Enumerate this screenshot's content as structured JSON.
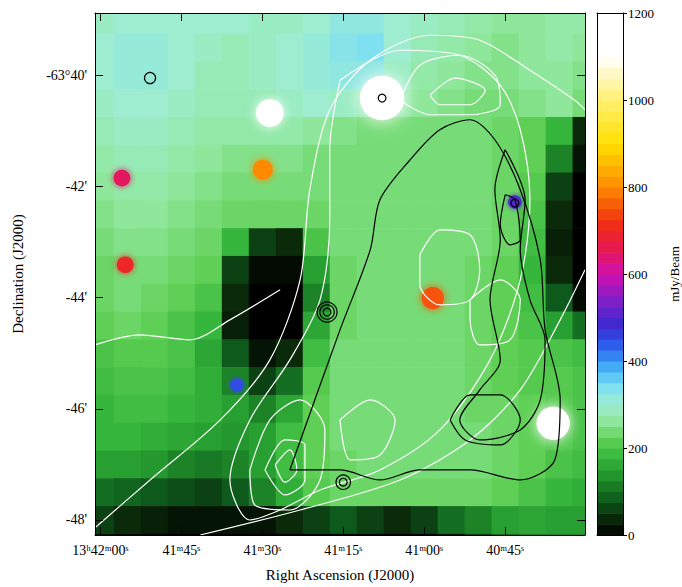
{
  "chart_data": {
    "type": "heatmap",
    "x_label": "Right Ascension (J2000)",
    "y_label": "Declination (J2000)",
    "xlim": [
      121,
      30.2
    ],
    "xticks": [
      {
        "value": 120,
        "label": "13ʰ42ᵐ00ˢ"
      },
      {
        "value": 105,
        "label": "41ᵐ45ˢ"
      },
      {
        "value": 90,
        "label": "41ᵐ30ˢ"
      },
      {
        "value": 75,
        "label": "41ᵐ15ˢ"
      },
      {
        "value": 60,
        "label": "41ᵐ00ˢ"
      },
      {
        "value": 45,
        "label": "40ᵐ45ˢ"
      }
    ],
    "ylim": [
      -48.27,
      -38.88
    ],
    "yticks": [
      {
        "value": -40,
        "label": "-63°40'"
      },
      {
        "value": -42,
        "label": "-42'"
      },
      {
        "value": -44,
        "label": "-44'"
      },
      {
        "value": -46,
        "label": "-46'"
      },
      {
        "value": -48,
        "label": "-48'"
      }
    ],
    "heatmap": {
      "x": [
        120,
        115,
        110,
        105,
        100,
        95,
        90,
        85,
        80,
        75,
        70,
        65,
        60,
        55,
        50,
        45,
        40,
        35,
        30
      ],
      "y": [
        -39,
        -39.5,
        -40,
        -40.5,
        -41,
        -41.5,
        -42,
        -42.5,
        -43,
        -43.5,
        -44,
        -44.5,
        -45,
        -45.5,
        -46,
        -46.5,
        -47,
        -47.5,
        -48,
        -48.5
      ],
      "values": [
        [
          290,
          300,
          300,
          300,
          300,
          300,
          290,
          290,
          300,
          320,
          320,
          300,
          290,
          280,
          270,
          260,
          260,
          270,
          270
        ],
        [
          300,
          310,
          310,
          300,
          290,
          280,
          290,
          300,
          310,
          330,
          340,
          300,
          280,
          270,
          260,
          250,
          260,
          270,
          260
        ],
        [
          300,
          310,
          310,
          300,
          280,
          280,
          290,
          300,
          310,
          320,
          320,
          290,
          270,
          260,
          250,
          250,
          260,
          260,
          250
        ],
        [
          290,
          300,
          300,
          290,
          280,
          280,
          280,
          290,
          300,
          290,
          280,
          270,
          260,
          250,
          240,
          240,
          250,
          260,
          240
        ],
        [
          280,
          290,
          290,
          280,
          270,
          270,
          270,
          270,
          260,
          250,
          240,
          240,
          240,
          240,
          240,
          230,
          220,
          180,
          40
        ],
        [
          270,
          280,
          280,
          270,
          260,
          250,
          250,
          250,
          240,
          240,
          240,
          240,
          240,
          240,
          240,
          230,
          220,
          120,
          20
        ],
        [
          260,
          270,
          270,
          260,
          250,
          240,
          240,
          240,
          240,
          240,
          240,
          240,
          240,
          240,
          240,
          230,
          210,
          60,
          0
        ],
        [
          250,
          260,
          260,
          250,
          240,
          230,
          230,
          230,
          230,
          240,
          240,
          240,
          240,
          240,
          240,
          230,
          200,
          40,
          0
        ],
        [
          240,
          250,
          250,
          240,
          230,
          180,
          60,
          40,
          200,
          240,
          240,
          240,
          240,
          240,
          240,
          230,
          190,
          30,
          0
        ],
        [
          230,
          240,
          240,
          230,
          220,
          60,
          10,
          10,
          150,
          230,
          240,
          240,
          240,
          240,
          230,
          220,
          180,
          40,
          0
        ],
        [
          230,
          240,
          230,
          220,
          200,
          40,
          0,
          0,
          120,
          230,
          240,
          240,
          240,
          240,
          230,
          220,
          190,
          80,
          10
        ],
        [
          220,
          230,
          220,
          200,
          180,
          30,
          0,
          0,
          160,
          230,
          240,
          240,
          240,
          240,
          230,
          220,
          200,
          150,
          100
        ],
        [
          200,
          210,
          210,
          200,
          160,
          80,
          20,
          40,
          190,
          240,
          240,
          240,
          240,
          240,
          230,
          220,
          210,
          200,
          190
        ],
        [
          190,
          200,
          200,
          190,
          170,
          120,
          60,
          100,
          210,
          240,
          240,
          240,
          240,
          240,
          230,
          220,
          210,
          210,
          200
        ],
        [
          180,
          190,
          190,
          180,
          170,
          150,
          120,
          160,
          220,
          240,
          240,
          240,
          240,
          240,
          230,
          230,
          220,
          210,
          200
        ],
        [
          180,
          180,
          170,
          160,
          150,
          140,
          150,
          190,
          220,
          240,
          240,
          240,
          240,
          240,
          240,
          230,
          220,
          210,
          200
        ],
        [
          150,
          150,
          140,
          120,
          110,
          120,
          150,
          190,
          220,
          230,
          240,
          240,
          240,
          240,
          240,
          230,
          220,
          200,
          190
        ],
        [
          100,
          90,
          80,
          70,
          60,
          80,
          120,
          170,
          210,
          230,
          230,
          230,
          230,
          230,
          230,
          220,
          200,
          180,
          170
        ],
        [
          60,
          40,
          30,
          20,
          20,
          20,
          20,
          40,
          60,
          80,
          60,
          40,
          60,
          100,
          120,
          150,
          160,
          150,
          150
        ],
        [
          20,
          10,
          0,
          0,
          0,
          0,
          0,
          0,
          0,
          0,
          0,
          0,
          0,
          20,
          60,
          100,
          120,
          120,
          120
        ]
      ]
    },
    "sources": {
      "x": [
        67.8,
        88.6,
        116.0,
        89.9,
        115.4,
        94.7,
        58.4,
        36.1,
        43.2
      ],
      "y": [
        -40.41,
        -40.68,
        -41.85,
        -41.7,
        -43.41,
        -45.57,
        -44.01,
        -46.26,
        -42.28
      ],
      "values": [
        1200,
        1100,
        650,
        800,
        700,
        450,
        750,
        1100,
        500
      ],
      "radius": [
        0.4,
        0.25,
        0.15,
        0.18,
        0.15,
        0.12,
        0.2,
        0.3,
        0.12
      ]
    },
    "contours": [
      {
        "color": "white",
        "paths": [
          [
            [
              101.5,
              -48.27
            ],
            [
              83.0,
              -47.82
            ],
            [
              64.5,
              -47.28
            ],
            [
              51.5,
              -46.56
            ],
            [
              42.2,
              -45.66
            ],
            [
              34.8,
              -44.4
            ],
            [
              30.2,
              -43.5
            ]
          ],
          [
            [
              121.0,
              -48.14
            ],
            [
              110.8,
              -47.28
            ],
            [
              97.8,
              -46.2
            ],
            [
              88.6,
              -45.12
            ],
            [
              83.0,
              -43.68
            ],
            [
              81.2,
              -42.06
            ],
            [
              77.5,
              -40.62
            ],
            [
              70.0,
              -39.73
            ],
            [
              58.9,
              -39.28
            ],
            [
              49.7,
              -39.37
            ],
            [
              40.4,
              -39.91
            ],
            [
              32.1,
              -40.45
            ],
            [
              30.2,
              -40.62
            ]
          ],
          [
            [
              75.6,
              -40.09
            ],
            [
              64.5,
              -39.55
            ],
            [
              53.4,
              -39.64
            ],
            [
              45.9,
              -40.18
            ],
            [
              42.2,
              -40.98
            ],
            [
              40.4,
              -42.24
            ],
            [
              42.2,
              -43.68
            ],
            [
              47.8,
              -45.12
            ],
            [
              57.1,
              -46.38
            ],
            [
              68.2,
              -47.1
            ],
            [
              79.3,
              -47.46
            ],
            [
              86.7,
              -47.82
            ],
            [
              92.3,
              -48.0
            ],
            [
              96.0,
              -47.28
            ],
            [
              92.3,
              -46.2
            ],
            [
              84.9,
              -45.12
            ],
            [
              79.3,
              -44.04
            ],
            [
              77.5,
              -42.6
            ],
            [
              77.5,
              -41.34
            ],
            [
              75.6,
              -40.09
            ]
          ],
          [
            [
              64.5,
              -40.45
            ],
            [
              60.8,
              -39.82
            ],
            [
              53.4,
              -39.64
            ],
            [
              46.9,
              -40.0
            ],
            [
              45.9,
              -40.53
            ],
            [
              51.5,
              -40.71
            ],
            [
              58.9,
              -40.71
            ],
            [
              64.5,
              -40.45
            ]
          ],
          [
            [
              58.9,
              -40.36
            ],
            [
              54.3,
              -40.05
            ],
            [
              48.7,
              -40.27
            ],
            [
              51.5,
              -40.53
            ],
            [
              57.1,
              -40.53
            ],
            [
              58.9,
              -40.36
            ]
          ],
          [
            [
              60.8,
              -43.23
            ],
            [
              57.1,
              -42.78
            ],
            [
              51.5,
              -42.87
            ],
            [
              49.7,
              -43.5
            ],
            [
              51.5,
              -44.04
            ],
            [
              57.1,
              -44.13
            ],
            [
              60.8,
              -43.77
            ],
            [
              60.8,
              -43.23
            ]
          ],
          [
            [
              92.3,
              -47.1
            ],
            [
              88.6,
              -46.2
            ],
            [
              83.0,
              -45.84
            ],
            [
              78.4,
              -46.38
            ],
            [
              79.3,
              -47.28
            ],
            [
              84.9,
              -47.82
            ],
            [
              91.4,
              -47.73
            ],
            [
              92.3,
              -47.1
            ]
          ],
          [
            [
              89.5,
              -47.1
            ],
            [
              85.8,
              -46.56
            ],
            [
              82.1,
              -46.65
            ],
            [
              82.1,
              -47.28
            ],
            [
              85.8,
              -47.55
            ],
            [
              89.5,
              -47.1
            ]
          ],
          [
            [
              87.6,
              -47.01
            ],
            [
              84.9,
              -46.74
            ],
            [
              83.6,
              -47.1
            ],
            [
              85.8,
              -47.32
            ],
            [
              87.6,
              -47.01
            ]
          ],
          [
            [
              51.5,
              -44.04
            ],
            [
              45.9,
              -43.68
            ],
            [
              42.2,
              -44.04
            ],
            [
              44.1,
              -44.76
            ],
            [
              49.7,
              -44.85
            ],
            [
              51.5,
              -44.4
            ],
            [
              51.5,
              -44.04
            ]
          ],
          [
            [
              75.6,
              -46.2
            ],
            [
              70.0,
              -45.84
            ],
            [
              65.4,
              -46.2
            ],
            [
              68.2,
              -46.83
            ],
            [
              73.7,
              -46.92
            ],
            [
              75.6,
              -46.2
            ]
          ],
          [
            [
              121.0,
              -44.85
            ],
            [
              112.7,
              -44.67
            ],
            [
              103.4,
              -44.76
            ],
            [
              96.0,
              -44.4
            ],
            [
              86.7,
              -43.86
            ]
          ]
        ]
      },
      {
        "color": "black",
        "paths": [
          [
            [
              84.9,
              -47.1
            ],
            [
              75.6,
              -44.58
            ],
            [
              70.0,
              -43.14
            ],
            [
              68.2,
              -42.24
            ],
            [
              62.6,
              -41.52
            ],
            [
              57.1,
              -40.98
            ],
            [
              51.5,
              -40.8
            ],
            [
              46.9,
              -41.16
            ],
            [
              42.2,
              -42.06
            ],
            [
              38.5,
              -43.32
            ],
            [
              37.6,
              -44.58
            ],
            [
              34.8,
              -45.84
            ],
            [
              35.8,
              -46.92
            ],
            [
              42.2,
              -47.28
            ],
            [
              51.5,
              -47.1
            ],
            [
              60.8,
              -47.1
            ],
            [
              68.2,
              -47.28
            ],
            [
              75.6,
              -47.1
            ],
            [
              84.9,
              -47.1
            ]
          ],
          [
            [
              45.0,
              -41.34
            ],
            [
              41.3,
              -42.24
            ],
            [
              42.2,
              -43.14
            ],
            [
              40.4,
              -44.04
            ],
            [
              37.6,
              -44.76
            ],
            [
              38.5,
              -45.84
            ],
            [
              42.2,
              -46.38
            ],
            [
              49.7,
              -46.56
            ],
            [
              53.4,
              -46.2
            ],
            [
              49.7,
              -45.66
            ],
            [
              45.9,
              -45.12
            ],
            [
              47.8,
              -44.04
            ],
            [
              45.9,
              -42.96
            ],
            [
              46.9,
              -42.06
            ],
            [
              45.0,
              -41.34
            ]
          ],
          [
            [
              45.0,
              -42.15
            ],
            [
              43.2,
              -42.24
            ],
            [
              42.2,
              -42.96
            ],
            [
              44.1,
              -43.05
            ],
            [
              45.9,
              -42.69
            ],
            [
              45.0,
              -42.15
            ]
          ],
          [
            [
              55.2,
              -46.2
            ],
            [
              51.5,
              -45.75
            ],
            [
              45.9,
              -45.75
            ],
            [
              42.2,
              -46.2
            ],
            [
              45.9,
              -46.65
            ],
            [
              52.4,
              -46.56
            ],
            [
              55.2,
              -46.2
            ]
          ]
        ],
        "circles": {
          "x": [
            78.0,
            78.0,
            78.0,
            75.0,
            75.0,
            110.8,
            67.8,
            43.2
          ],
          "y": [
            -44.26,
            -44.26,
            -44.26,
            -47.32,
            -47.32,
            -40.05,
            -40.41,
            -42.3
          ],
          "r": [
            0.07,
            0.13,
            0.18,
            0.07,
            0.13,
            0.1,
            0.07,
            0.07
          ]
        }
      }
    ],
    "colorbar": {
      "label": "mJy/Beam",
      "range": [
        0,
        1200
      ],
      "ticks": [
        0,
        200,
        400,
        600,
        800,
        1000,
        1200
      ]
    }
  }
}
